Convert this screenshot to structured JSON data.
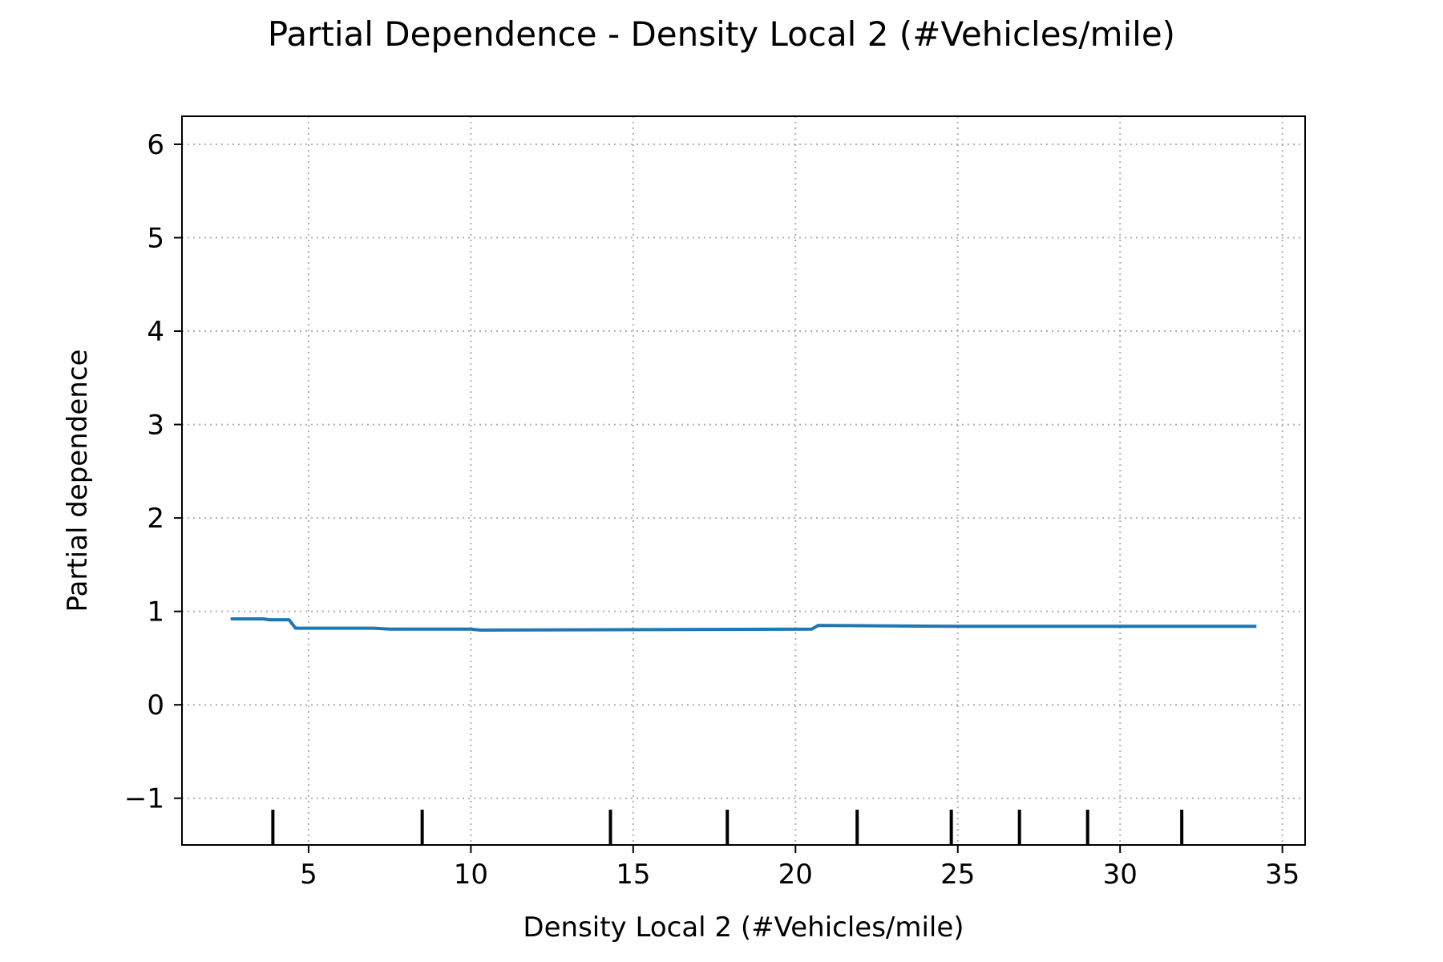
{
  "chart_data": {
    "type": "line",
    "title": "Partial Dependence - Density Local 2 (#Vehicles/mile)",
    "xlabel": "Density Local 2 (#Vehicles/mile)",
    "ylabel": "Partial dependence",
    "xlim": [
      1.1,
      35.7
    ],
    "ylim": [
      -1.5,
      6.3
    ],
    "xticks": [
      5,
      10,
      15,
      20,
      25,
      30,
      35
    ],
    "xtick_labels": [
      "5",
      "10",
      "15",
      "20",
      "25",
      "30",
      "35"
    ],
    "yticks": [
      -1,
      0,
      1,
      2,
      3,
      4,
      5,
      6
    ],
    "ytick_labels": [
      "−1",
      "0",
      "1",
      "2",
      "3",
      "4",
      "5",
      "6"
    ],
    "grid": true,
    "series": [
      {
        "color": "#1f77b4",
        "x": [
          2.6,
          3.6,
          3.8,
          4.4,
          4.6,
          7.0,
          7.5,
          10.0,
          10.3,
          20.5,
          20.7,
          25.0,
          28.0,
          34.2
        ],
        "y": [
          0.92,
          0.92,
          0.91,
          0.91,
          0.82,
          0.82,
          0.81,
          0.81,
          0.8,
          0.81,
          0.85,
          0.84,
          0.84,
          0.84
        ]
      }
    ],
    "rug_x": [
      3.9,
      8.5,
      14.3,
      17.9,
      21.9,
      24.8,
      26.9,
      29.0,
      31.9
    ]
  }
}
